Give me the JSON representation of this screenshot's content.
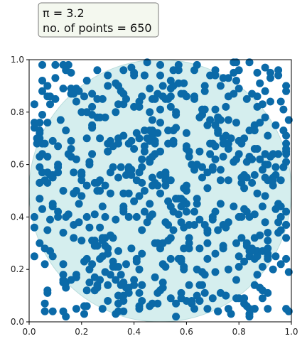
{
  "chart_data": {
    "type": "scatter",
    "title": "",
    "xlabel": "",
    "ylabel": "",
    "xlim": [
      0,
      1
    ],
    "ylim": [
      0,
      1
    ],
    "xticks": [
      "0.0",
      "0.2",
      "0.4",
      "0.6",
      "0.8",
      "1.0"
    ],
    "yticks": [
      "0.0",
      "0.2",
      "0.4",
      "0.6",
      "0.8",
      "1.0"
    ],
    "grid": false,
    "annotation": {
      "pi_line": "π = 3.2",
      "points_line": "no. of points = 650"
    },
    "circle": {
      "center": [
        0.5,
        0.5
      ],
      "radius": 0.5
    },
    "point_count": 650,
    "points_x": [
      0.05,
      0.72,
      0.28,
      0.55,
      0.09,
      0.91,
      0.46,
      0.37,
      0.21,
      0.81,
      0.17,
      0.83,
      0.48,
      0.45,
      0.36,
      0.4,
      0.53,
      0.68,
      0.73,
      0.87,
      0.98,
      0.24,
      0.21,
      0.59,
      0.02,
      0.75,
      0.53,
      0.61,
      0.67,
      0.28,
      0.52,
      0.02,
      0.97,
      0.81,
      0.94,
      0.46,
      0.82,
      0.72,
      0.36,
      0.39,
      0.3,
      0.07,
      0.58,
      0.34,
      0.91,
      0.42,
      0.07,
      0.9,
      0.71,
      0.87,
      0.7,
      0.79,
      0.91,
      0.84,
      0.9,
      0.76,
      0.73,
      0.53,
      0.73,
      0.29,
      0.96,
      0.36,
      0.23,
      0.3,
      0.63,
      0.25,
      0.3,
      0.47,
      0.98,
      0.88,
      0.56,
      0.4,
      0.16,
      0.72,
      0.37,
      0.44,
      0.79,
      0.2,
      0.13,
      0.23,
      0.5,
      0.13,
      0.87,
      0.48,
      0.17,
      0.59,
      0.8,
      0.77,
      0.02,
      0.52,
      0.57,
      0.28,
      0.13,
      0.28,
      0.83,
      0.99,
      0.54,
      0.95,
      0.79,
      0.95,
      0.86,
      0.13,
      0.64,
      0.05,
      0.49,
      0.44,
      0.08,
      0.98,
      0.76,
      0.44,
      0.63,
      0.88,
      0.58,
      0.69,
      0.3,
      0.14,
      0.6,
      0.61,
      0.88,
      0.15,
      0.76,
      0.06,
      0.4,
      0.38,
      0.6,
      0.86,
      0.06,
      0.91,
      0.6,
      0.26,
      0.18,
      0.42,
      0.48,
      0.46,
      0.8,
      0.93,
      0.36,
      0.31,
      0.35,
      0.85,
      0.91,
      0.57,
      0.94,
      0.3,
      0.41,
      0.24,
      0.42,
      0.07,
      0.2,
      0.11,
      0.8,
      0.24,
      0.09,
      0.45,
      0.12,
      0.33,
      0.2,
      0.05,
      0.11,
      0.89,
      0.53,
      0.29,
      0.22,
      0.22,
      0.55,
      0.96,
      0.79,
      0.52,
      0.64,
      0.27,
      0.69,
      0.8,
      0.29,
      0.59,
      0.14,
      0.83,
      0.36,
      0.38,
      0.8,
      0.04,
      0.32,
      0.48,
      0.35,
      0.02,
      0.9,
      0.63,
      0.38,
      0.5,
      0.69,
      0.83,
      0.47,
      0.07,
      0.25,
      0.36,
      0.33,
      0.61,
      0.26,
      0.86,
      0.92,
      0.62,
      0.64,
      0.34,
      0.47,
      0.43,
      0.85,
      0.58,
      0.14,
      0.2,
      0.71,
      0.7,
      0.19,
      0.36,
      0.07,
      0.84,
      0.34,
      0.16,
      0.66,
      0.76,
      0.78,
      0.39,
      0.31,
      0.43,
      0.39,
      0.26,
      0.44,
      0.33,
      0.98,
      0.78,
      0.92,
      0.51,
      0.36,
      0.67,
      0.11,
      0.75,
      0.47,
      0.56,
      0.23,
      0.63,
      0.72,
      0.99,
      0.34,
      0.68,
      0.09,
      0.52,
      0.43,
      0.48,
      0.58,
      0.84,
      0.89,
      0.24,
      0.84,
      0.56,
      0.49,
      0.4,
      0.85,
      0.91,
      0.76,
      0.82,
      0.41,
      0.5,
      0.58,
      0.68,
      0.53,
      0.25,
      0.33,
      0.26,
      0.72,
      0.88,
      0.56,
      0.3,
      0.43,
      0.29,
      0.61,
      0.97,
      0.37,
      0.42,
      0.5,
      0.52,
      0.26,
      0.7,
      0.1,
      0.98,
      0.98,
      0.47,
      0.65,
      0.34,
      0.78,
      0.61,
      0.59,
      0.56,
      0.93,
      0.76,
      0.21,
      0.89,
      0.98,
      0.42,
      0.38,
      0.89,
      0.21,
      0.46,
      0.65,
      0.86,
      0.74,
      0.98,
      0.04,
      0.18,
      0.66,
      0.4,
      0.13,
      0.66,
      0.4,
      0.09,
      0.89,
      0.15,
      0.55,
      0.86,
      0.29,
      0.18,
      0.58,
      0.56,
      0.5,
      0.92,
      0.05,
      0.65,
      0.66,
      0.93,
      0.91,
      0.95,
      0.36,
      0.85,
      0.73,
      0.26,
      0.65,
      0.75,
      0.75,
      0.28,
      0.09,
      0.44,
      0.15,
      0.23,
      0.54,
      0.38,
      0.34,
      0.05,
      0.82,
      0.23,
      0.06,
      0.24,
      0.68,
      0.83,
      0.06,
      0.32,
      0.81,
      0.26,
      0.6,
      0.74,
      0.88,
      0.87,
      0.56,
      0.9,
      0.55,
      0.58,
      0.6,
      0.68,
      0.27,
      0.86,
      0.43,
      0.24,
      0.99,
      0.87,
      0.11,
      0.83,
      0.74,
      0.8,
      0.42,
      0.08,
      0.68,
      0.71,
      0.43,
      0.71,
      0.18,
      0.81,
      0.82,
      0.05,
      0.16,
      0.51,
      0.71,
      0.91,
      0.39,
      0.67,
      0.61,
      0.72,
      0.71,
      0.84,
      0.34,
      0.87,
      0.52,
      0.27,
      0.95,
      0.57,
      0.68,
      0.3,
      0.98,
      0.33,
      0.78,
      0.82,
      0.17,
      0.9,
      0.07,
      0.04,
      0.65,
      0.31,
      0.45,
      0.8,
      0.47,
      0.46,
      0.42,
      0.04,
      0.54,
      0.93,
      0.86,
      0.86,
      0.74,
      0.74,
      0.94,
      0.51,
      0.4,
      0.54,
      0.43,
      0.55,
      0.1,
      0.63,
      0.14,
      0.54,
      0.51,
      0.39,
      0.91,
      0.3,
      0.87,
      0.6,
      0.13,
      0.66,
      0.16,
      0.65,
      0.53,
      0.22,
      0.32,
      0.8,
      0.5,
      0.86,
      0.22,
      0.82,
      0.48,
      0.46,
      0.37,
      0.59,
      0.47,
      0.47,
      0.74,
      0.96,
      0.44,
      0.9,
      0.31,
      0.07,
      0.64,
      0.71,
      0.89,
      0.13,
      0.53,
      0.04,
      0.49,
      0.02,
      0.76,
      0.67,
      0.39,
      0.05,
      0.07,
      0.52,
      0.18,
      0.06,
      0.03,
      0.95,
      0.97,
      0.76,
      0.53,
      0.27,
      0.62,
      0.5,
      0.98,
      0.57,
      0.91,
      0.24,
      0.11,
      0.36,
      0.63,
      0.48,
      0.42,
      0.43,
      0.54,
      0.67,
      0.98,
      0.83,
      0.18,
      0.09,
      0.79,
      0.42,
      0.59,
      0.73,
      0.13,
      0.54,
      0.75,
      0.38,
      0.34,
      0.2,
      0.87,
      0.66,
      0.79,
      0.92,
      0.98,
      0.19,
      0.06,
      0.5,
      0.61,
      0.49,
      0.46,
      0.44,
      0.65,
      0.14,
      0.95,
      0.34,
      0.14,
      0.33,
      0.64,
      0.43,
      0.96,
      0.98,
      0.41,
      0.16,
      0.74,
      0.86,
      0.72,
      0.34,
      0.77,
      0.32,
      0.34,
      0.16,
      0.57,
      0.05,
      0.07,
      0.32,
      0.51,
      0.04,
      0.3,
      0.41,
      0.91,
      0.2,
      0.09,
      0.13,
      0.18,
      0.24,
      0.08,
      0.54,
      0.57,
      0.84,
      0.67,
      0.59,
      0.9,
      0.04,
      0.84,
      0.22,
      0.84,
      0.03,
      0.35,
      0.22,
      0.6,
      0.81,
      0.98,
      0.49,
      0.9,
      0.64,
      0.82,
      0.62,
      0.46,
      0.93,
      0.41,
      0.46,
      0.27,
      0.69,
      0.84,
      0.25,
      0.71,
      0.55,
      0.71,
      0.17,
      0.08,
      0.72,
      0.5,
      0.51,
      0.11,
      0.04,
      0.76,
      0.04,
      0.7,
      0.6,
      0.16,
      0.7,
      0.25,
      0.42,
      0.94,
      0.47,
      0.58,
      0.68,
      0.1,
      0.66,
      0.31,
      0.54,
      0.89,
      0.08,
      0.86,
      0.46,
      0.17,
      0.49,
      0.78,
      0.26,
      0.25,
      0.38,
      0.79,
      0.94,
      0.7,
      0.96,
      0.84,
      0.35,
      0.73,
      0.86,
      0.59,
      0.22,
      0.29,
      0.27,
      0.04,
      0.19,
      0.96,
      0.02,
      0.55,
      0.28,
      0.6,
      0.47,
      0.22,
      0.27,
      0.36,
      0.63,
      0.36,
      0.67,
      0.64,
      0.93,
      0.03,
      0.31,
      0.31,
      0.4,
      0.38,
      0.8,
      0.07,
      0.22,
      0.58,
      0.87,
      0.04,
      0.54,
      0.78,
      0.83,
      0.65,
      0.15
    ],
    "points_y": [
      0.88,
      0.35,
      0.85,
      0.96,
      0.04,
      0.71,
      0.61,
      0.13,
      0.86,
      0.32,
      0.87,
      0.61,
      0.68,
      0.7,
      0.87,
      0.95,
      0.68,
      0.51,
      0.45,
      0.27,
      0.68,
      0.82,
      0.03,
      0.36,
      0.36,
      0.1,
      0.46,
      0.65,
      0.37,
      0.31,
      0.85,
      0.25,
      0.73,
      0.4,
      0.75,
      0.62,
      0.23,
      0.78,
      0.08,
      0.69,
      0.08,
      0.53,
      0.11,
      0.21,
      0.25,
      0.84,
      0.11,
      0.55,
      0.94,
      0.82,
      0.58,
      0.3,
      0.31,
      0.73,
      0.64,
      0.93,
      0.58,
      0.54,
      0.9,
      0.32,
      0.35,
      0.42,
      0.61,
      0.68,
      0.42,
      0.12,
      0.94,
      0.55,
      0.24,
      0.62,
      0.47,
      0.82,
      0.95,
      0.72,
      0.85,
      0.65,
      0.99,
      0.31,
      0.98,
      0.15,
      0.65,
      0.89,
      0.49,
      0.3,
      0.57,
      0.2,
      0.4,
      0.7,
      0.4,
      0.57,
      0.91,
      0.44,
      0.22,
      0.32,
      0.85,
      0.77,
      0.44,
      0.38,
      0.62,
      0.34,
      0.56,
      0.18,
      0.2,
      0.79,
      0.52,
      0.94,
      0.27,
      0.65,
      0.2,
      0.73,
      0.05,
      0.13,
      0.47,
      0.64,
      0.65,
      0.15,
      0.5,
      0.32,
      0.76,
      0.41,
      0.66,
      0.68,
      0.66,
      0.49,
      0.08,
      0.75,
      0.28,
      0.28,
      0.42,
      0.14,
      0.84,
      0.06,
      0.53,
      0.89,
      0.64,
      0.52,
      0.96,
      0.49,
      0.59,
      0.53,
      0.26,
      0.47,
      0.56,
      0.28,
      0.4,
      0.64,
      0.05,
      0.63,
      0.8,
      0.4,
      0.69,
      0.87,
      0.55,
      0.99,
      0.77,
      0.39,
      0.56,
      0.68,
      0.42,
      0.12,
      0.54,
      0.78,
      0.4,
      0.52,
      0.35,
      0.54,
      0.09,
      0.38,
      0.6,
      0.7,
      0.77,
      0.25,
      0.19,
      0.28,
      0.13,
      0.55,
      0.1,
      0.59,
      0.21,
      0.53,
      0.32,
      0.85,
      0.18,
      0.74,
      0.88,
      0.37,
      0.68,
      0.28,
      0.68,
      0.29,
      0.85,
      0.12,
      0.17,
      0.04,
      0.8,
      0.63,
      0.53,
      0.14,
      0.95,
      0.07,
      0.47,
      0.7,
      0.69,
      0.26,
      0.87,
      0.23,
      0.73,
      0.48,
      0.42,
      0.39,
      0.88,
      0.44,
      0.86,
      0.25,
      0.55,
      0.16,
      0.59,
      0.05,
      0.44,
      0.97,
      0.69,
      0.53,
      0.58,
      0.29,
      0.67,
      0.16,
      0.32,
      0.61,
      0.84,
      0.15,
      0.83,
      0.11,
      0.6,
      0.71,
      0.07,
      0.74,
      0.2,
      0.96,
      0.78,
      0.19,
      0.83,
      0.35,
      0.25,
      0.54,
      0.86,
      0.69,
      0.38,
      0.05,
      0.44,
      0.79,
      0.99,
      0.07,
      0.87,
      0.94,
      0.28,
      0.24,
      0.77,
      0.07,
      0.72,
      0.98,
      0.09,
      0.05,
      0.73,
      0.29,
      0.03,
      0.5,
      0.77,
      0.91,
      0.79,
      0.14,
      0.08,
      0.52,
      0.28,
      0.59,
      0.56,
      0.2,
      0.76,
      0.52,
      0.85,
      0.4,
      0.98,
      0.9,
      0.61,
      0.71,
      0.28,
      0.07,
      0.99,
      0.3,
      0.51,
      0.47,
      0.55,
      0.68,
      0.06,
      0.58,
      0.64,
      0.57,
      0.4,
      0.27,
      0.23,
      0.8,
      0.14,
      0.24,
      0.68,
      0.37,
      0.72,
      0.18,
      0.19,
      0.46,
      0.04,
      0.19,
      0.14,
      0.69,
      0.09,
      0.64,
      0.68,
      0.75,
      0.29,
      0.62,
      0.44,
      0.02,
      0.12,
      0.93,
      0.98,
      0.08,
      0.55,
      0.54,
      0.34,
      0.45,
      0.49,
      0.62,
      0.11,
      0.78,
      0.39,
      0.82,
      0.36,
      0.25,
      0.56,
      0.5,
      0.98,
      0.36,
      0.89,
      0.58,
      0.1,
      0.43,
      0.56,
      0.6,
      0.54,
      0.31,
      0.24,
      0.06,
      0.22,
      0.23,
      0.68,
      0.13,
      0.86,
      0.7,
      0.33,
      0.25,
      0.8,
      0.78,
      0.42,
      0.24,
      0.52,
      0.34,
      0.78,
      0.32,
      0.62,
      0.22,
      0.04,
      0.66,
      0.67,
      0.42,
      0.28,
      0.89,
      0.82,
      0.86,
      0.3,
      0.26,
      0.14,
      0.96,
      0.5,
      0.53,
      0.51,
      0.64,
      0.66,
      0.22,
      0.19,
      0.11,
      0.28,
      0.81,
      0.14,
      0.73,
      0.81,
      0.27,
      0.04,
      0.95,
      0.21,
      0.24,
      0.94,
      0.96,
      0.75,
      0.9,
      0.42,
      0.21,
      0.95,
      0.43,
      0.32,
      0.97,
      0.57,
      0.7,
      0.78,
      0.18,
      0.38,
      0.96,
      0.52,
      0.69,
      0.48,
      0.47,
      0.82,
      0.2,
      0.66,
      0.05,
      0.63,
      0.37,
      0.25,
      0.13,
      0.16,
      0.86,
      0.14,
      0.9,
      0.93,
      0.86,
      0.96,
      0.24,
      0.9,
      0.58,
      0.05,
      0.65,
      0.86,
      0.67,
      0.5,
      0.14,
      0.63,
      0.65,
      0.37,
      0.7,
      0.21,
      0.09,
      0.81,
      0.73,
      0.8,
      0.09,
      0.64,
      0.73,
      0.22,
      0.46,
      0.77,
      0.73,
      0.93,
      0.44,
      0.94,
      0.48,
      0.33,
      0.9,
      0.45,
      0.75,
      0.21,
      0.16,
      0.31,
      0.3,
      0.72,
      0.76,
      0.86,
      0.88,
      0.56,
      0.57,
      0.35,
      0.56,
      0.05,
      0.07,
      0.68,
      0.96,
      0.81,
      0.54,
      0.85,
      0.5,
      0.6,
      0.56,
      0.66,
      0.98,
      0.6,
      0.75,
      0.57,
      0.15,
      0.85,
      0.17,
      0.7,
      0.59,
      0.54,
      0.9,
      0.71,
      0.3,
      0.89,
      0.44,
      0.92,
      0.57,
      0.87,
      0.54,
      0.34,
      0.92,
      0.1,
      0.13,
      0.1,
      0.54,
      0.18,
      0.79,
      0.16,
      0.63,
      0.05,
      0.38,
      0.04,
      0.94,
      0.37,
      0.11,
      0.62,
      0.42,
      0.08,
      0.02,
      0.64,
      0.27,
      0.4,
      0.91,
      0.98,
      0.35,
      0.84,
      0.88,
      0.54,
      0.89,
      0.29,
      0.27,
      0.04,
      0.68,
      0.03,
      0.67,
      0.9,
      0.69,
      0.41,
      0.92,
      0.76,
      0.59,
      0.3,
      0.59,
      0.26,
      0.23,
      0.54,
      0.57,
      0.45,
      0.15,
      0.17,
      0.74,
      0.83,
      0.09,
      0.24,
      0.62,
      0.18,
      0.21,
      0.6,
      0.63,
      0.02,
      0.06,
      0.4,
      0.7,
      0.88,
      0.24,
      0.72,
      0.55,
      0.37,
      0.3,
      0.38,
      0.1,
      0.7,
      0.08,
      0.45,
      0.64,
      0.24,
      0.4,
      0.36,
      0.94,
      0.63,
      0.53,
      0.67,
      0.73,
      0.62,
      0.49,
      0.39,
      0.04,
      0.49,
      0.86,
      0.59,
      0.73,
      0.38,
      0.76,
      0.68,
      0.66,
      0.87,
      0.59,
      0.31,
      0.11,
      0.59,
      0.41,
      0.87,
      0.57,
      0.85,
      0.81,
      0.57,
      0.32,
      0.83,
      0.56,
      0.05,
      0.06,
      0.37,
      0.07,
      0.87,
      0.96,
      0.41,
      0.11,
      0.76,
      0.43,
      0.09,
      0.22,
      0.03,
      0.14,
      0.77,
      0.41,
      0.91,
      0.12,
      0.4,
      0.16,
      0.53,
      0.45,
      0.4,
      0.83,
      0.69,
      0.05,
      0.45,
      0.63,
      0.92,
      0.54,
      0.43,
      0.58,
      0.71
    ]
  },
  "style": {
    "point_color": "#0b6aa8",
    "circle_fill": "#d5eeee",
    "circle_stroke": "#b9dcdc",
    "axis_color": "#000000",
    "info_box_fill": "#f4f8ef",
    "info_box_stroke": "#7a7a7a"
  }
}
